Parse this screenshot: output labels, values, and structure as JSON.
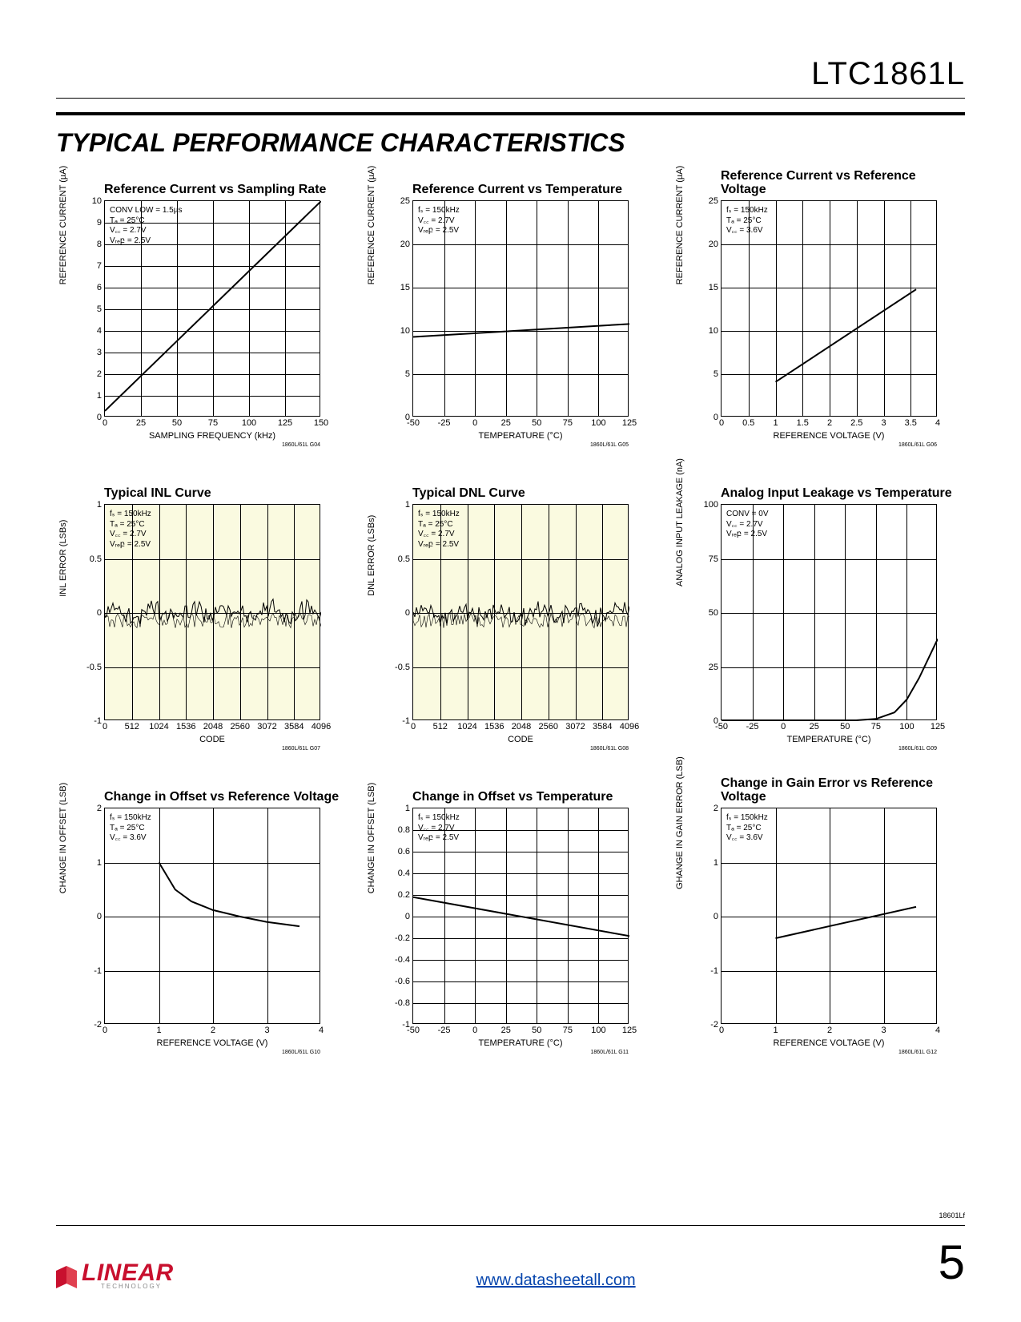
{
  "header": {
    "part_number": "LTC1861L",
    "section_title": "TYPICAL PERFORMANCE CHARACTERISTICS"
  },
  "footer": {
    "logo_text": "LINEAR",
    "logo_sub": "TECHNOLOGY",
    "url": "www.datasheetall.com",
    "page_number": "5",
    "doc_id": "18601Lf"
  },
  "colors": {
    "line": "#000000",
    "tint_bg": "#fafae0",
    "grid": "#000000",
    "logo_red": "#c8102e",
    "link": "#0645ad"
  },
  "charts": [
    {
      "title": "Reference Current vs Sampling Rate",
      "xlabel": "SAMPLING FREQUENCY (kHz)",
      "ylabel": "REFERENCE CURRENT (µA)",
      "xlim": [
        0,
        150
      ],
      "ylim": [
        0,
        10
      ],
      "xticks": [
        0,
        25,
        50,
        75,
        100,
        125,
        150
      ],
      "yticks": [
        0,
        1,
        2,
        3,
        4,
        5,
        6,
        7,
        8,
        9,
        10
      ],
      "grid_x": [
        25,
        50,
        75,
        100,
        125
      ],
      "grid_y": [
        1,
        2,
        3,
        4,
        5,
        6,
        7,
        8,
        9
      ],
      "兴": "line",
      "points": [
        [
          0,
          0.3
        ],
        [
          150,
          10
        ]
      ],
      "legend": [
        "CONV LOW = 1.5µs",
        "Tₐ = 25°C",
        "V꜀꜀ = 2.7V",
        "Vᵣₑբ = 2.5V"
      ],
      "figid": "1860L/61L G04",
      "tinted": false
    },
    {
      "title": "Reference Current vs Temperature",
      "xlabel": "TEMPERATURE (°C)",
      "ylabel": "REFERENCE CURRENT (µA)",
      "xlim": [
        -50,
        125
      ],
      "ylim": [
        0,
        25
      ],
      "xticks": [
        -50,
        -25,
        0,
        25,
        50,
        75,
        100,
        125
      ],
      "yticks": [
        0,
        5,
        10,
        15,
        20,
        25
      ],
      "grid_x": [
        -25,
        0,
        25,
        50,
        75,
        100
      ],
      "grid_y": [
        5,
        10,
        15,
        20
      ],
      "points": [
        [
          -50,
          9.3
        ],
        [
          125,
          10.8
        ]
      ],
      "legend": [
        "fₛ = 150kHz",
        "V꜀꜀ = 2.7V",
        "Vᵣₑբ = 2.5V"
      ],
      "figid": "1860L/61L G05",
      "tinted": false
    },
    {
      "title": "Reference Current vs Reference Voltage",
      "xlabel": "REFERENCE VOLTAGE (V)",
      "ylabel": "REFERENCE CURRENT (µA)",
      "xlim": [
        0,
        4
      ],
      "ylim": [
        0,
        25
      ],
      "xticks": [
        0,
        0.5,
        1.0,
        1.5,
        2.0,
        2.5,
        3.0,
        3.5,
        4.0
      ],
      "yticks": [
        0,
        5,
        10,
        15,
        20,
        25
      ],
      "grid_x": [
        0.5,
        1.0,
        1.5,
        2.0,
        2.5,
        3.0,
        3.5
      ],
      "grid_y": [
        5,
        10,
        15,
        20
      ],
      "points": [
        [
          1.0,
          4.1
        ],
        [
          3.6,
          14.8
        ]
      ],
      "legend": [
        "fₛ = 150kHz",
        "Tₐ = 25°C",
        "V꜀꜀ = 3.6V"
      ],
      "figid": "1860L/61L G06",
      "tinted": false
    },
    {
      "title": "Typical INL Curve",
      "xlabel": "CODE",
      "ylabel": "INL ERROR (LSBs)",
      "xlim": [
        0,
        4096
      ],
      "ylim": [
        -1.0,
        1.0
      ],
      "xticks": [
        0,
        512,
        1024,
        1536,
        2048,
        2560,
        3072,
        3584,
        4096
      ],
      "yticks": [
        -1.0,
        -0.5,
        0,
        0.5,
        1.0
      ],
      "grid_x": [
        512,
        1024,
        1536,
        2048,
        2560,
        3072,
        3584
      ],
      "grid_y": [
        -0.5,
        0,
        0.5
      ],
      "noise": true,
      "legend": [
        "fₛ = 150kHz",
        "Tₐ = 25°C",
        "V꜀꜀ = 2.7V",
        "Vᵣₑբ = 2.5V"
      ],
      "figid": "1860L/61L G07",
      "tinted": true
    },
    {
      "title": "Typical DNL Curve",
      "xlabel": "CODE",
      "ylabel": "DNL ERROR (LSBs)",
      "xlim": [
        0,
        4096
      ],
      "ylim": [
        -1.0,
        1.0
      ],
      "xticks": [
        0,
        512,
        1024,
        1536,
        2048,
        2560,
        3072,
        3584,
        4096
      ],
      "yticks": [
        -1.0,
        -0.5,
        0,
        0.5,
        1.0
      ],
      "grid_x": [
        512,
        1024,
        1536,
        2048,
        2560,
        3072,
        3584
      ],
      "grid_y": [
        -0.5,
        0,
        0.5
      ],
      "noise": true,
      "legend": [
        "fₛ = 150kHz",
        "Tₐ = 25°C",
        "V꜀꜀ = 2.7V",
        "Vᵣₑբ = 2.5V"
      ],
      "figid": "1860L/61L G08",
      "tinted": true
    },
    {
      "title": "Analog Input Leakage vs Temperature",
      "xlabel": "TEMPERATURE (°C)",
      "ylabel": "ANALOG INPUT LEAKAGE (nA)",
      "xlim": [
        -50,
        125
      ],
      "ylim": [
        0,
        100
      ],
      "xticks": [
        -50,
        -25,
        0,
        25,
        50,
        75,
        100,
        125
      ],
      "yticks": [
        0,
        25,
        50,
        75,
        100
      ],
      "grid_x": [
        -25,
        0,
        25,
        50,
        75,
        100
      ],
      "grid_y": [
        25,
        50,
        75
      ],
      "points": [
        [
          -50,
          0
        ],
        [
          50,
          0
        ],
        [
          75,
          1
        ],
        [
          90,
          4
        ],
        [
          100,
          10
        ],
        [
          110,
          20
        ],
        [
          125,
          38
        ]
      ],
      "curved": true,
      "legend": [
        "CONV = 0V",
        "V꜀꜀ = 2.7V",
        "Vᵣₑբ = 2.5V"
      ],
      "figid": "1860L/61L G09",
      "tinted": false
    },
    {
      "title": "Change in Offset vs Reference Voltage",
      "xlabel": "REFERENCE VOLTAGE (V)",
      "ylabel": "CHANGE IN OFFSET (LSB)",
      "xlim": [
        0,
        4
      ],
      "ylim": [
        -2,
        2
      ],
      "xticks": [
        0,
        1,
        2,
        3,
        4
      ],
      "yticks": [
        -2,
        -1,
        0,
        1,
        2
      ],
      "grid_x": [
        1,
        2,
        3
      ],
      "grid_y": [
        -1,
        0,
        1
      ],
      "points": [
        [
          1.0,
          1.0
        ],
        [
          1.3,
          0.5
        ],
        [
          1.6,
          0.28
        ],
        [
          2.0,
          0.12
        ],
        [
          2.5,
          0.0
        ],
        [
          3.0,
          -0.1
        ],
        [
          3.6,
          -0.18
        ]
      ],
      "curved": true,
      "legend": [
        "fₛ = 150kHz",
        "Tₐ = 25°C",
        "V꜀꜀ = 3.6V"
      ],
      "figid": "1860L/61L G10",
      "tinted": false
    },
    {
      "title": "Change in Offset vs Temperature",
      "xlabel": "TEMPERATURE (°C)",
      "ylabel": "CHANGE IN OFFSET (LSB)",
      "xlim": [
        -50,
        125
      ],
      "ylim": [
        -1.0,
        1.0
      ],
      "xticks": [
        -50,
        -25,
        0,
        25,
        50,
        75,
        100,
        125
      ],
      "yticks": [
        -1.0,
        -0.8,
        -0.6,
        -0.4,
        -0.2,
        0,
        0.2,
        0.4,
        0.6,
        0.8,
        1.0
      ],
      "grid_x": [
        -25,
        0,
        25,
        50,
        75,
        100
      ],
      "grid_y": [
        -0.8,
        -0.6,
        -0.4,
        -0.2,
        0,
        0.2,
        0.4,
        0.6,
        0.8
      ],
      "points": [
        [
          -50,
          0.18
        ],
        [
          125,
          -0.18
        ]
      ],
      "legend": [
        "fₛ = 150kHz",
        "V꜀꜀ = 2.7V",
        "Vᵣₑբ = 2.5V"
      ],
      "figid": "1860L/61L G11",
      "tinted": false
    },
    {
      "title": "Change in Gain Error vs Reference Voltage",
      "xlabel": "REFERENCE VOLTAGE (V)",
      "ylabel": "GHANGE IN GAIN ERROR (LSB)",
      "xlim": [
        0,
        4
      ],
      "ylim": [
        -2,
        2
      ],
      "xticks": [
        0,
        1,
        2,
        3,
        4
      ],
      "yticks": [
        -2,
        -1,
        0,
        1,
        2
      ],
      "grid_x": [
        1,
        2,
        3
      ],
      "grid_y": [
        -1,
        0,
        1
      ],
      "points": [
        [
          1.0,
          -0.4
        ],
        [
          3.6,
          0.18
        ]
      ],
      "legend": [
        "fₛ = 150kHz",
        "Tₐ = 25°C",
        "V꜀꜀ = 3.6V"
      ],
      "figid": "1860L/61L G12",
      "tinted": false
    }
  ]
}
